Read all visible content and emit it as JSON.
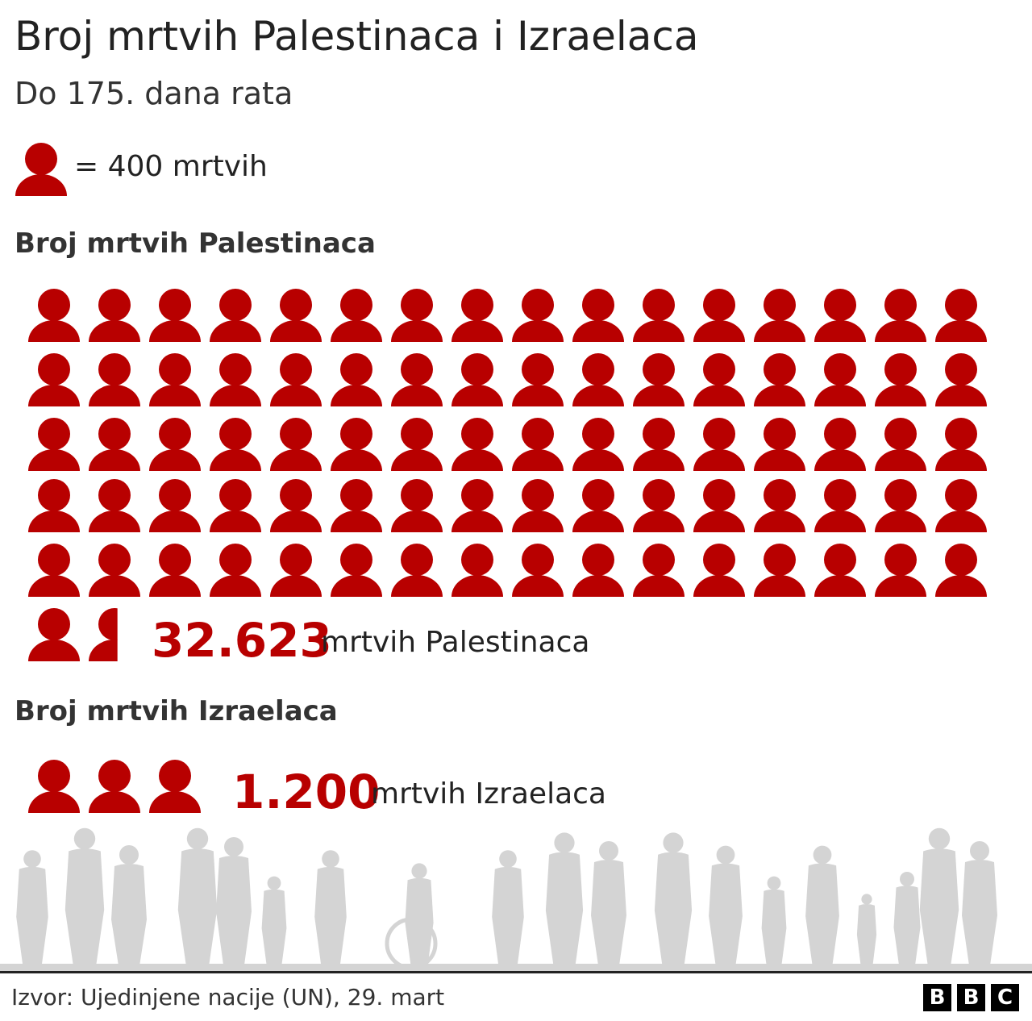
{
  "title": "Broj mrtvih Palestinaca i Izraelaca",
  "subtitle": "Do 175. dana rata",
  "legend": {
    "icon": "person-icon",
    "text": "= 400 mrtvih",
    "unit_value": 400
  },
  "palestinians": {
    "heading": "Broj mrtvih Palestinaca",
    "total": "32.623",
    "label": "mrtvih Palestinaca"
  },
  "israelis": {
    "heading": "Broj mrtvih Izraelaca",
    "total": "1.200",
    "label": "mrtvih Izraelaca"
  },
  "footer": {
    "source": "Izvor: Ujedinjene nacije (UN), 29. mart",
    "logo": [
      "B",
      "B",
      "C"
    ]
  },
  "colors": {
    "accent": "#b80000",
    "silhouette": "#d4d4d4"
  },
  "chart_data": {
    "type": "pictogram",
    "title": "Broj mrtvih Palestinaca i Izraelaca",
    "unit": 400,
    "series": [
      {
        "name": "Palestinci",
        "value": 32623,
        "icons": 81.56
      },
      {
        "name": "Izraelci",
        "value": 1200,
        "icons": 3
      }
    ]
  }
}
